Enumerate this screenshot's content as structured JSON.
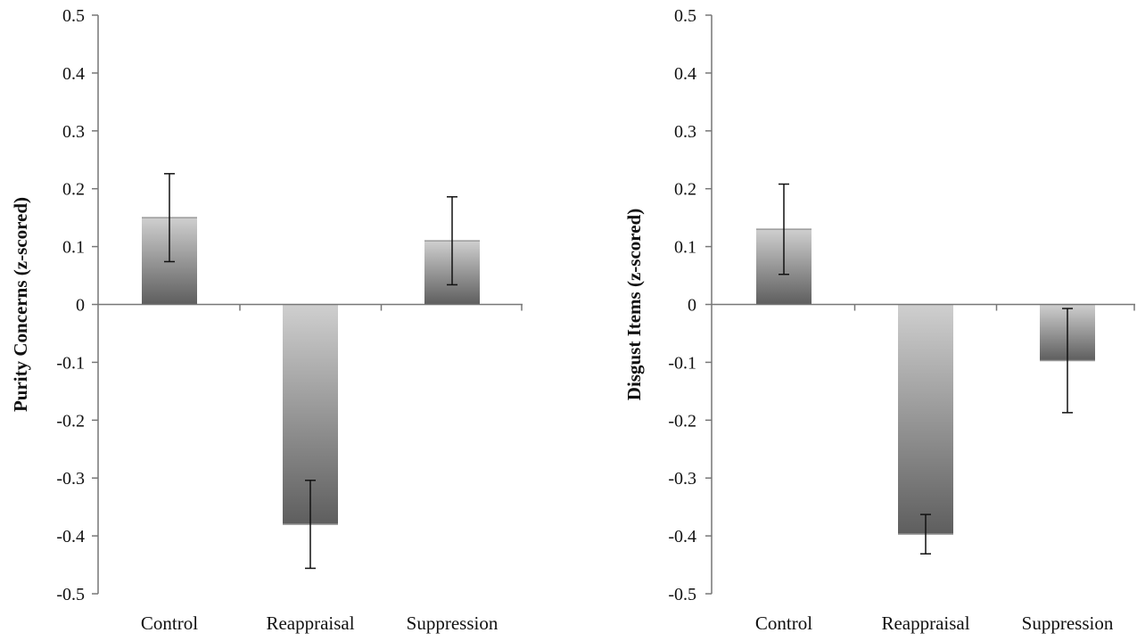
{
  "chart_data": [
    {
      "type": "bar",
      "categories": [
        "Control",
        "Reappraisal",
        "Suppression"
      ],
      "values": [
        0.15,
        -0.38,
        0.11
      ],
      "error": [
        0.076,
        0.076,
        0.076
      ],
      "ylabel": "Purity Concerns (z-scored)",
      "xlabel": "",
      "ylim": [
        -0.5,
        0.5
      ],
      "yticks": [
        "0.5",
        "0.4",
        "0.3",
        "0.2",
        "0.1",
        "0",
        "-0.1",
        "-0.2",
        "-0.3",
        "-0.4",
        "-0.5"
      ],
      "grid": false,
      "legend": "none"
    },
    {
      "type": "bar",
      "categories": [
        "Control",
        "Reappraisal",
        "Suppression"
      ],
      "values": [
        0.13,
        -0.397,
        -0.097
      ],
      "error": [
        0.078,
        0.034,
        0.09
      ],
      "ylabel": "Disgust Items (z-scored)",
      "xlabel": "",
      "ylim": [
        -0.5,
        0.5
      ],
      "yticks": [
        "0.5",
        "0.4",
        "0.3",
        "0.2",
        "0.1",
        "0",
        "-0.1",
        "-0.2",
        "-0.3",
        "-0.4",
        "-0.5"
      ],
      "grid": false,
      "legend": "none"
    }
  ],
  "colors": {
    "bar_light": "#cfcfcf",
    "bar_dark": "#5e5e5e",
    "axis": "#777777",
    "error_bar": "#111111"
  }
}
